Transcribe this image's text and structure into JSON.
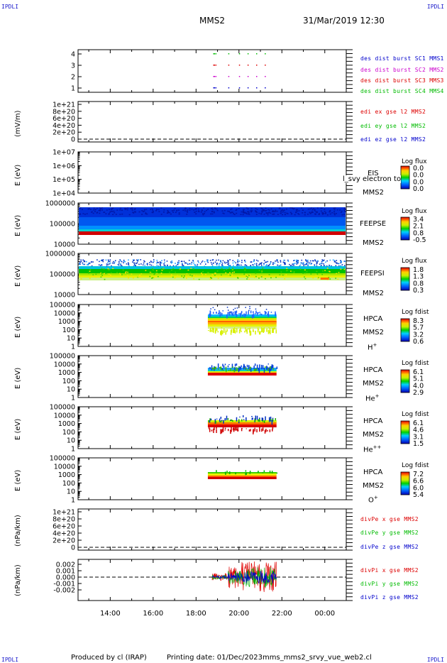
{
  "corners": {
    "tl": "IPDLI",
    "tr": "IPDLI",
    "bl": "IPDLI",
    "br": "IPDLI"
  },
  "header": {
    "mission": "MMS2",
    "datetime": "31/Mar/2019 12:30"
  },
  "footer": {
    "produced_by": "Produced by cl (IRAP)",
    "printing_date": "Printing date: 01/Dec/2023",
    "filename": "mms_mms2_srvy_vue_web2.cl"
  },
  "colors": {
    "mms1": "#0000cc",
    "mms2": "#cc00cc",
    "mms3": "#dd0000",
    "mms4": "#00bb00"
  },
  "time_axis": {
    "ticks": [
      "14:00",
      "16:00",
      "18:00",
      "20:00",
      "22:00",
      "00:00"
    ]
  },
  "chart_data": [
    {
      "id": "burst",
      "type": "scatter",
      "y_ticks": [
        "1",
        "2",
        "3",
        "4"
      ],
      "legend": [
        "des dist burst SC1 MMS1",
        "des dist burst SC2 MMS2",
        "des dist burst SC3 MMS3",
        "des dist burst SC4 MMS4"
      ]
    },
    {
      "id": "edi",
      "type": "line",
      "ylabel": "(mV/m)",
      "y_ticks": [
        "1e+21",
        "8e+20",
        "6e+20",
        "4e+20",
        "2e+20",
        "0"
      ],
      "legend": [
        "edi ex gse l2 MMS2",
        "edi ey gse l2 MMS2",
        "edi ez gse l2 MMS2"
      ]
    },
    {
      "id": "eis",
      "type": "heatmap",
      "ylabel": "E (eV)",
      "y_ticks": [
        "1e+07",
        "1e+06",
        "1e+05",
        "1e+04"
      ],
      "instrument": "EIS",
      "overlay": "l_svy electron to",
      "sc": "MMS2",
      "cbar_title": "Log flux",
      "cbar_ticks": [
        "0.0",
        "0.0",
        "0.0",
        "0.0"
      ]
    },
    {
      "id": "feepse",
      "type": "heatmap",
      "ylabel": "E (eV)",
      "y_ticks": [
        "1000000",
        "100000",
        "10000"
      ],
      "instrument": "FEEPSE",
      "sc": "MMS2",
      "cbar_title": "Log flux",
      "cbar_ticks": [
        "3.4",
        "2.1",
        "0.8",
        "-0.5"
      ]
    },
    {
      "id": "feepsi",
      "type": "heatmap",
      "ylabel": "E (eV)",
      "y_ticks": [
        "1000000",
        "100000",
        "10000"
      ],
      "instrument": "FEEPSI",
      "sc": "MMS2",
      "cbar_title": "Log flux",
      "cbar_ticks": [
        "1.8",
        "1.3",
        "0.8",
        "0.3"
      ]
    },
    {
      "id": "hpca_h",
      "type": "heatmap",
      "ylabel": "E (eV)",
      "y_ticks": [
        "100000",
        "10000",
        "1000",
        "100",
        "10",
        "1"
      ],
      "instrument": "HPCA",
      "sc": "MMS2",
      "species": "H",
      "species_sup": "+",
      "cbar_title": "Log fdist",
      "cbar_ticks": [
        "8.3",
        "5.7",
        "3.2",
        "0.6"
      ]
    },
    {
      "id": "hpca_he",
      "type": "heatmap",
      "ylabel": "E (eV)",
      "y_ticks": [
        "100000",
        "10000",
        "1000",
        "100",
        "10",
        "1"
      ],
      "instrument": "HPCA",
      "sc": "MMS2",
      "species": "He",
      "species_sup": "+",
      "cbar_title": "Log fdist",
      "cbar_ticks": [
        "6.1",
        "5.1",
        "4.0",
        "2.9"
      ]
    },
    {
      "id": "hpca_he2",
      "type": "heatmap",
      "ylabel": "E (eV)",
      "y_ticks": [
        "100000",
        "10000",
        "1000",
        "100",
        "10",
        "1"
      ],
      "instrument": "HPCA",
      "sc": "MMS2",
      "species": "He",
      "species_sup": "++",
      "cbar_title": "Log fdist",
      "cbar_ticks": [
        "6.1",
        "4.6",
        "3.1",
        "1.5"
      ]
    },
    {
      "id": "hpca_o",
      "type": "heatmap",
      "ylabel": "E (eV)",
      "y_ticks": [
        "100000",
        "10000",
        "1000",
        "100",
        "10",
        "1"
      ],
      "instrument": "HPCA",
      "sc": "MMS2",
      "species": "O",
      "species_sup": "+",
      "cbar_title": "Log fdist",
      "cbar_ticks": [
        "7.2",
        "6.6",
        "6.0",
        "5.4"
      ]
    },
    {
      "id": "divpe",
      "type": "line",
      "ylabel": "(nPa/km)",
      "y_ticks": [
        "1e+21",
        "8e+20",
        "6e+20",
        "4e+20",
        "2e+20",
        "0"
      ],
      "legend": [
        "divPe x gse MMS2",
        "divPe y gse MMS2",
        "divPe z gse MMS2"
      ]
    },
    {
      "id": "divpi",
      "type": "line",
      "ylabel": "(nPa/km)",
      "y_ticks": [
        "0.002",
        "0.001",
        "0.000",
        "-0.001",
        "-0.002"
      ],
      "legend": [
        "divPi x gse MMS2",
        "divPi y gse MMS2",
        "divPi z gse MMS2"
      ]
    }
  ]
}
